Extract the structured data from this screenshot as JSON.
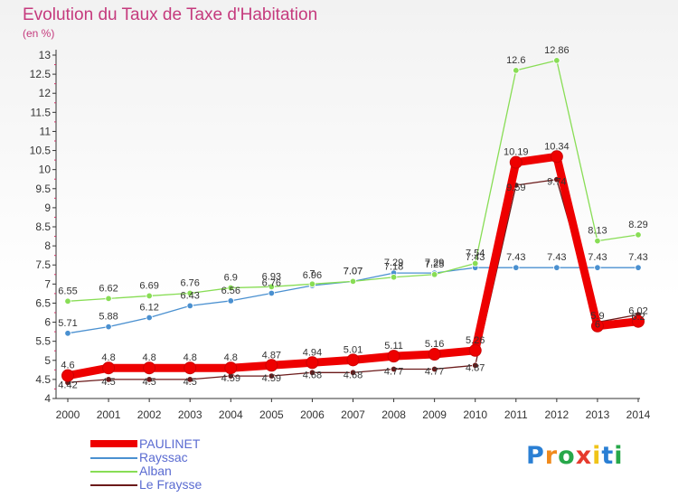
{
  "header": {
    "title": "Evolution du Taux de Taxe d'Habitation",
    "subtitle": "(en %)"
  },
  "logo": {
    "text": "Proxiti"
  },
  "chart_data": {
    "type": "line",
    "title": "Evolution du Taux de Taxe d'Habitation",
    "subtitle": "(en %)",
    "x": [
      "2000",
      "2001",
      "2002",
      "2003",
      "2004",
      "2005",
      "2006",
      "2007",
      "2008",
      "2009",
      "2010",
      "2011",
      "2012",
      "2013",
      "2014"
    ],
    "ylim": [
      4,
      13
    ],
    "yticks": [
      "4",
      "4.5",
      "5",
      "5.5",
      "6",
      "6.5",
      "7",
      "7.5",
      "8",
      "8.5",
      "9",
      "9.5",
      "10",
      "10.5",
      "11",
      "11.5",
      "12",
      "12.5",
      "13"
    ],
    "grid": false,
    "legend_position": "bottom-left",
    "series": [
      {
        "name": "PAULINET",
        "color": "#ee0000",
        "values": [
          4.6,
          4.8,
          4.8,
          4.8,
          4.8,
          4.87,
          4.94,
          5.01,
          5.11,
          5.16,
          5.26,
          10.19,
          10.34,
          5.9,
          6.02
        ],
        "labels": [
          "4.6",
          "4.8",
          "4.8",
          "4.8",
          "4.8",
          "4.87",
          "4.94",
          "5.01",
          "5.11",
          "5.16",
          "5.26",
          "10.19",
          "10.34",
          "5.9",
          "6.02"
        ]
      },
      {
        "name": "Rayssac",
        "color": "#4a90d0",
        "values": [
          5.71,
          5.88,
          6.12,
          6.43,
          6.56,
          6.76,
          6.96,
          7.07,
          7.29,
          7.29,
          7.43,
          7.43,
          7.43,
          7.43,
          7.43
        ],
        "labels": [
          "5.71",
          "5.88",
          "6.12",
          "6.43",
          "6.56",
          "6.76",
          "6.96",
          "7.07",
          "7.29",
          "7.29",
          "7.43",
          "7.43",
          "7.43",
          "7.43",
          "7.43"
        ]
      },
      {
        "name": "Alban",
        "color": "#88dd55",
        "values": [
          6.55,
          6.62,
          6.69,
          6.76,
          6.9,
          6.93,
          7.0,
          7.07,
          7.18,
          7.25,
          7.54,
          12.6,
          12.86,
          8.13,
          8.29
        ],
        "labels": [
          "6.55",
          "6.62",
          "6.69",
          "6.76",
          "6.9",
          "6.93",
          "7",
          "7.07",
          "7.18",
          "7.25",
          "7.54",
          "12.6",
          "12.86",
          "8.13",
          "8.29"
        ]
      },
      {
        "name": "Le Fraysse",
        "color": "#6b1a1a",
        "values": [
          4.42,
          4.5,
          4.5,
          4.5,
          4.59,
          4.59,
          4.68,
          4.68,
          4.77,
          4.77,
          4.87,
          9.59,
          9.74,
          6.0,
          6.2
        ],
        "labels": [
          "4.42",
          "4.5",
          "4.5",
          "4.5",
          "4.59",
          "4.59",
          "4.68",
          "4.68",
          "4.77",
          "4.77",
          "4.87",
          "9.59",
          "9.74",
          "6",
          "6.2"
        ]
      }
    ]
  }
}
